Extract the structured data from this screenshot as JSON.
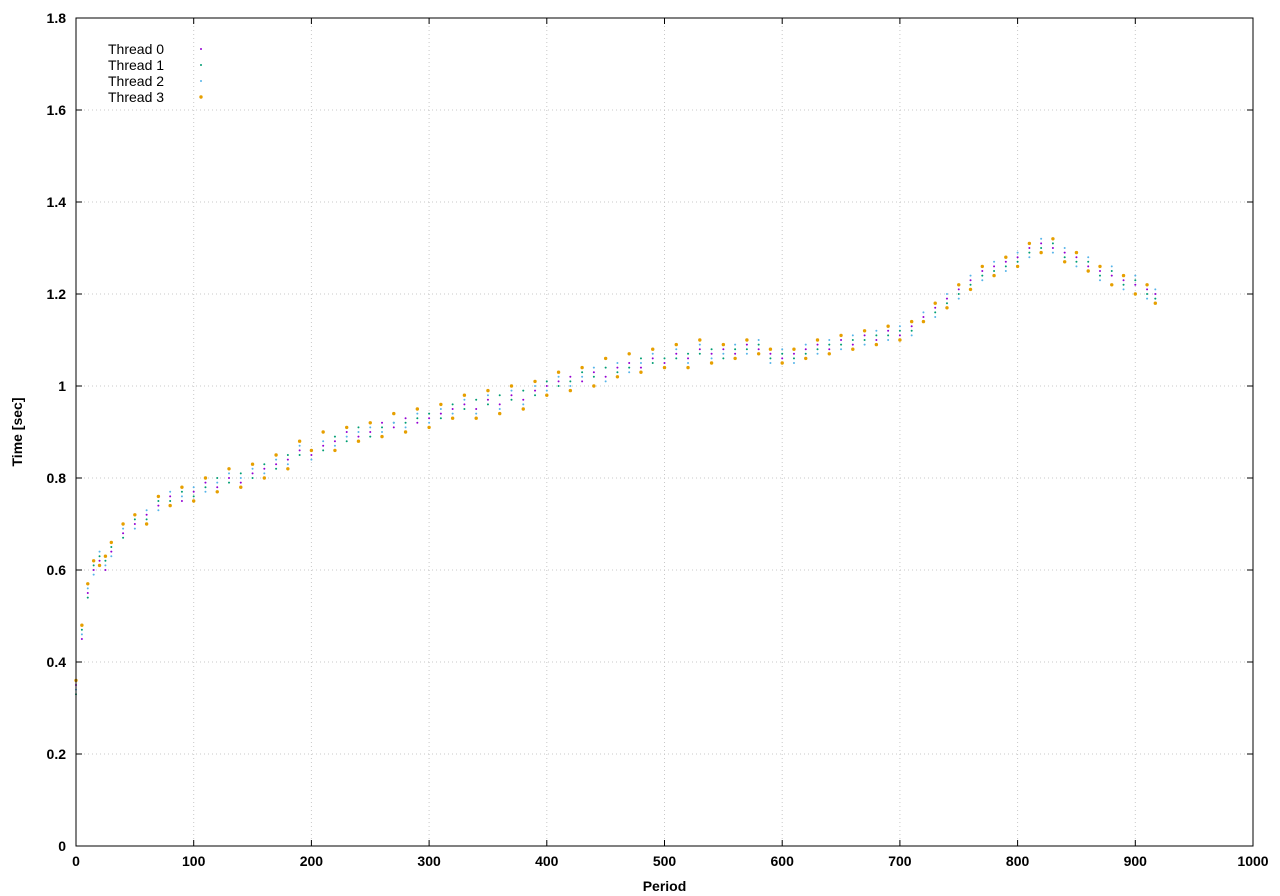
{
  "chart_data": {
    "type": "scatter",
    "title": "",
    "xlabel": "Period",
    "ylabel": "Time [sec]",
    "xlim": [
      0,
      1000
    ],
    "ylim": [
      0,
      1.8
    ],
    "xticks": [
      0,
      100,
      200,
      300,
      400,
      500,
      600,
      700,
      800,
      900,
      1000
    ],
    "yticks": [
      0,
      0.2,
      0.4,
      0.6,
      0.8,
      1,
      1.2,
      1.4,
      1.6,
      1.8
    ],
    "xtick_labels": [
      "0",
      "100",
      "200",
      "300",
      "400",
      "500",
      "600",
      "700",
      "800",
      "900",
      "1000"
    ],
    "ytick_labels": [
      "0",
      "0.2",
      "0.4",
      "0.6",
      "0.8",
      "1",
      "1.2",
      "1.4",
      "1.6",
      "1.8"
    ],
    "grid": true,
    "legend_position": "top-left",
    "series": [
      {
        "name": "Thread 0",
        "color": "#9400d3",
        "marker": "dot",
        "x": [
          0,
          5,
          10,
          15,
          20,
          25,
          30,
          40,
          50,
          60,
          70,
          80,
          90,
          100,
          110,
          120,
          130,
          140,
          150,
          160,
          170,
          180,
          190,
          200,
          210,
          220,
          230,
          240,
          250,
          260,
          270,
          280,
          290,
          300,
          310,
          320,
          330,
          340,
          350,
          360,
          370,
          380,
          390,
          400,
          410,
          420,
          430,
          440,
          450,
          460,
          470,
          480,
          490,
          500,
          510,
          520,
          530,
          540,
          550,
          560,
          570,
          580,
          590,
          600,
          610,
          620,
          630,
          640,
          650,
          660,
          670,
          680,
          690,
          700,
          710,
          720,
          730,
          740,
          750,
          760,
          770,
          780,
          790,
          800,
          810,
          820,
          830,
          840,
          850,
          860,
          870,
          880,
          890,
          900,
          910,
          917
        ],
        "y": [
          0.35,
          0.45,
          0.55,
          0.6,
          0.62,
          0.6,
          0.64,
          0.68,
          0.7,
          0.72,
          0.74,
          0.76,
          0.75,
          0.77,
          0.79,
          0.78,
          0.8,
          0.79,
          0.81,
          0.82,
          0.83,
          0.84,
          0.86,
          0.85,
          0.87,
          0.88,
          0.9,
          0.89,
          0.9,
          0.92,
          0.91,
          0.93,
          0.92,
          0.93,
          0.94,
          0.95,
          0.96,
          0.95,
          0.97,
          0.96,
          0.98,
          0.97,
          0.99,
          1.0,
          1.01,
          1.02,
          1.01,
          1.03,
          1.02,
          1.04,
          1.05,
          1.04,
          1.06,
          1.05,
          1.07,
          1.06,
          1.08,
          1.07,
          1.08,
          1.07,
          1.09,
          1.08,
          1.07,
          1.06,
          1.07,
          1.08,
          1.09,
          1.08,
          1.1,
          1.09,
          1.11,
          1.1,
          1.12,
          1.11,
          1.13,
          1.15,
          1.17,
          1.19,
          1.21,
          1.23,
          1.25,
          1.26,
          1.27,
          1.28,
          1.3,
          1.31,
          1.3,
          1.29,
          1.28,
          1.26,
          1.25,
          1.24,
          1.23,
          1.22,
          1.21,
          1.2
        ]
      },
      {
        "name": "Thread 1",
        "color": "#009e73",
        "marker": "dot",
        "x": [
          0,
          5,
          10,
          15,
          20,
          25,
          30,
          40,
          50,
          60,
          70,
          80,
          90,
          100,
          110,
          120,
          130,
          140,
          150,
          160,
          170,
          180,
          190,
          200,
          210,
          220,
          230,
          240,
          250,
          260,
          270,
          280,
          290,
          300,
          310,
          320,
          330,
          340,
          350,
          360,
          370,
          380,
          390,
          400,
          410,
          420,
          430,
          440,
          450,
          460,
          470,
          480,
          490,
          500,
          510,
          520,
          530,
          540,
          550,
          560,
          570,
          580,
          590,
          600,
          610,
          620,
          630,
          640,
          650,
          660,
          670,
          680,
          690,
          700,
          710,
          720,
          730,
          740,
          750,
          760,
          770,
          780,
          790,
          800,
          810,
          820,
          830,
          840,
          850,
          860,
          870,
          880,
          890,
          900,
          910,
          917
        ],
        "y": [
          0.33,
          0.47,
          0.54,
          0.61,
          0.63,
          0.62,
          0.65,
          0.67,
          0.71,
          0.71,
          0.75,
          0.75,
          0.77,
          0.76,
          0.78,
          0.8,
          0.79,
          0.81,
          0.8,
          0.83,
          0.82,
          0.85,
          0.85,
          0.86,
          0.86,
          0.89,
          0.88,
          0.91,
          0.89,
          0.91,
          0.92,
          0.92,
          0.93,
          0.94,
          0.93,
          0.96,
          0.95,
          0.97,
          0.96,
          0.98,
          0.97,
          0.99,
          0.98,
          1.01,
          1.0,
          1.01,
          1.03,
          1.02,
          1.04,
          1.03,
          1.04,
          1.06,
          1.05,
          1.06,
          1.06,
          1.07,
          1.07,
          1.08,
          1.06,
          1.08,
          1.08,
          1.09,
          1.06,
          1.07,
          1.06,
          1.07,
          1.08,
          1.09,
          1.09,
          1.1,
          1.1,
          1.11,
          1.11,
          1.12,
          1.12,
          1.14,
          1.16,
          1.18,
          1.2,
          1.22,
          1.24,
          1.25,
          1.26,
          1.27,
          1.29,
          1.3,
          1.31,
          1.28,
          1.27,
          1.27,
          1.24,
          1.25,
          1.22,
          1.23,
          1.2,
          1.19
        ]
      },
      {
        "name": "Thread 2",
        "color": "#56b4e9",
        "marker": "dot",
        "x": [
          0,
          5,
          10,
          15,
          20,
          25,
          30,
          40,
          50,
          60,
          70,
          80,
          90,
          100,
          110,
          120,
          130,
          140,
          150,
          160,
          170,
          180,
          190,
          200,
          210,
          220,
          230,
          240,
          250,
          260,
          270,
          280,
          290,
          300,
          310,
          320,
          330,
          340,
          350,
          360,
          370,
          380,
          390,
          400,
          410,
          420,
          430,
          440,
          450,
          460,
          470,
          480,
          490,
          500,
          510,
          520,
          530,
          540,
          550,
          560,
          570,
          580,
          590,
          600,
          610,
          620,
          630,
          640,
          650,
          660,
          670,
          680,
          690,
          700,
          710,
          720,
          730,
          740,
          750,
          760,
          770,
          780,
          790,
          800,
          810,
          820,
          830,
          840,
          850,
          860,
          870,
          880,
          890,
          900,
          910,
          917
        ],
        "y": [
          0.34,
          0.46,
          0.56,
          0.59,
          0.64,
          0.61,
          0.63,
          0.69,
          0.69,
          0.73,
          0.73,
          0.77,
          0.76,
          0.78,
          0.77,
          0.79,
          0.81,
          0.8,
          0.82,
          0.81,
          0.84,
          0.83,
          0.87,
          0.84,
          0.88,
          0.87,
          0.89,
          0.9,
          0.91,
          0.9,
          0.92,
          0.91,
          0.94,
          0.92,
          0.95,
          0.94,
          0.97,
          0.94,
          0.98,
          0.95,
          0.99,
          0.96,
          1.0,
          0.99,
          1.02,
          1.0,
          1.02,
          1.04,
          1.01,
          1.05,
          1.03,
          1.05,
          1.07,
          1.04,
          1.08,
          1.05,
          1.09,
          1.06,
          1.07,
          1.09,
          1.07,
          1.1,
          1.05,
          1.08,
          1.05,
          1.09,
          1.07,
          1.1,
          1.08,
          1.11,
          1.09,
          1.12,
          1.1,
          1.13,
          1.11,
          1.16,
          1.15,
          1.2,
          1.19,
          1.24,
          1.23,
          1.27,
          1.25,
          1.29,
          1.28,
          1.32,
          1.29,
          1.3,
          1.26,
          1.28,
          1.23,
          1.26,
          1.21,
          1.24,
          1.19,
          1.21
        ]
      },
      {
        "name": "Thread 3",
        "color": "#e69f00",
        "marker": "dot",
        "x": [
          0,
          5,
          10,
          15,
          20,
          25,
          30,
          40,
          50,
          60,
          70,
          80,
          90,
          100,
          110,
          120,
          130,
          140,
          150,
          160,
          170,
          180,
          190,
          200,
          210,
          220,
          230,
          240,
          250,
          260,
          270,
          280,
          290,
          300,
          310,
          320,
          330,
          340,
          350,
          360,
          370,
          380,
          390,
          400,
          410,
          420,
          430,
          440,
          450,
          460,
          470,
          480,
          490,
          500,
          510,
          520,
          530,
          540,
          550,
          560,
          570,
          580,
          590,
          600,
          610,
          620,
          630,
          640,
          650,
          660,
          670,
          680,
          690,
          700,
          710,
          720,
          730,
          740,
          750,
          760,
          770,
          780,
          790,
          800,
          810,
          820,
          830,
          840,
          850,
          860,
          870,
          880,
          890,
          900,
          910,
          917
        ],
        "y": [
          0.36,
          0.48,
          0.57,
          0.62,
          0.61,
          0.63,
          0.66,
          0.7,
          0.72,
          0.7,
          0.76,
          0.74,
          0.78,
          0.75,
          0.8,
          0.77,
          0.82,
          0.78,
          0.83,
          0.8,
          0.85,
          0.82,
          0.88,
          0.86,
          0.9,
          0.86,
          0.91,
          0.88,
          0.92,
          0.89,
          0.94,
          0.9,
          0.95,
          0.91,
          0.96,
          0.93,
          0.98,
          0.93,
          0.99,
          0.94,
          1.0,
          0.95,
          1.01,
          0.98,
          1.03,
          0.99,
          1.04,
          1.0,
          1.06,
          1.02,
          1.07,
          1.03,
          1.08,
          1.04,
          1.09,
          1.04,
          1.1,
          1.05,
          1.09,
          1.06,
          1.1,
          1.07,
          1.08,
          1.05,
          1.08,
          1.06,
          1.1,
          1.07,
          1.11,
          1.08,
          1.12,
          1.09,
          1.13,
          1.1,
          1.14,
          1.14,
          1.18,
          1.17,
          1.22,
          1.21,
          1.26,
          1.24,
          1.28,
          1.26,
          1.31,
          1.29,
          1.32,
          1.27,
          1.29,
          1.25,
          1.26,
          1.22,
          1.24,
          1.2,
          1.22,
          1.18
        ]
      }
    ]
  }
}
